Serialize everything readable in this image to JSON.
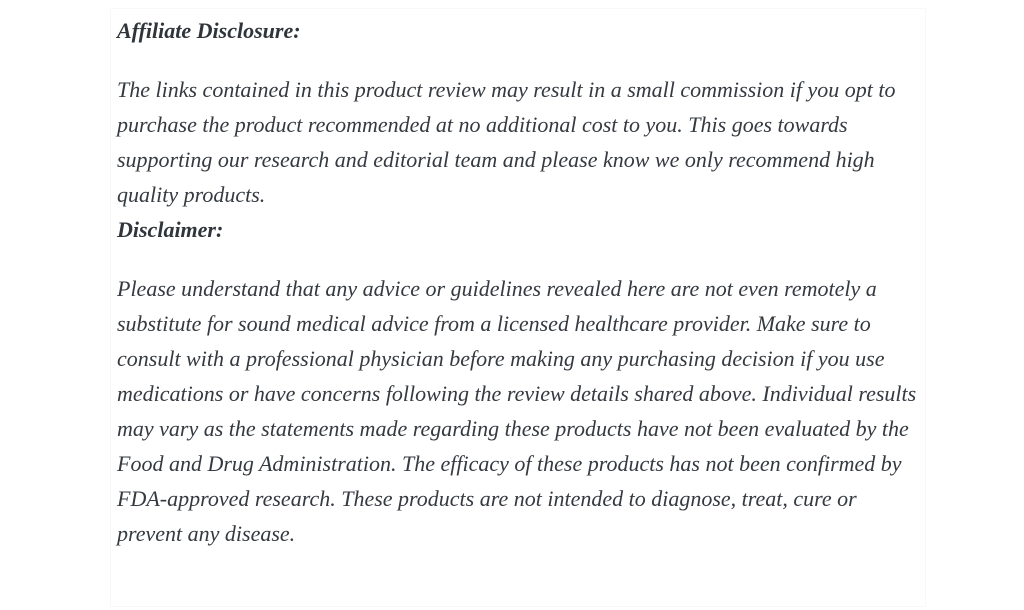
{
  "page": {
    "background_color": "#ffffff",
    "text_color": "#353a40",
    "heading_color": "#2f353b"
  },
  "article": {
    "sections": [
      {
        "heading": "Affiliate Disclosure:",
        "body": "The links contained in this product review may result in a small commission if you opt to purchase the product recommended at no additional cost to you. This goes towards supporting our research and editorial team and please know we only recommend high quality products."
      },
      {
        "heading": "Disclaimer:",
        "body": "Please understand that any advice or guidelines revealed here are not even remotely a substitute for sound medical advice from a licensed healthcare provider. Make sure to consult with a professional physician before making any purchasing decision if you use medications or have concerns following the review details shared above. Individual results may vary as the statements made regarding these products have not been evaluated by the Food and Drug Administration. The efficacy of these products has not been confirmed by FDA-approved research. These products are not intended to diagnose, treat, cure or prevent any disease."
      }
    ]
  }
}
